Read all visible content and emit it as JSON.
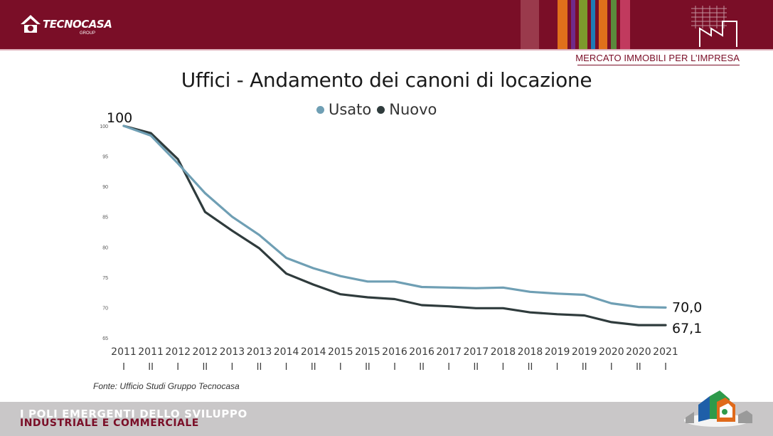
{
  "header": {
    "brand": "TECNOCASA",
    "brand_sub": "GROUP",
    "section_label": "MERCATO IMMOBILI PER L’IMPRESA",
    "stripe_colors": [
      "#9a3a4c",
      "#7a0e27",
      "#e0701b",
      "#6f2a8a",
      "#7d9a2c",
      "#1e7bb5",
      "#e0701b",
      "#5b8a3c",
      "#c13a5e"
    ]
  },
  "chart_data": {
    "type": "line",
    "title": "Uffici - Andamento dei canoni di locazione",
    "categories": [
      "2011",
      "2011",
      "2012",
      "2012",
      "2013",
      "2013",
      "2014",
      "2014",
      "2015",
      "2015",
      "2016",
      "2016",
      "2017",
      "2017",
      "2018",
      "2018",
      "2019",
      "2019",
      "2020",
      "2020",
      "2021"
    ],
    "semesters": [
      "I",
      "II",
      "I",
      "II",
      "I",
      "II",
      "I",
      "II",
      "I",
      "II",
      "I",
      "II",
      "I",
      "II",
      "I",
      "II",
      "I",
      "II",
      "I",
      "II",
      "I"
    ],
    "y_ticks": [
      65,
      70,
      75,
      80,
      85,
      90,
      95,
      100
    ],
    "ylim": [
      65,
      100
    ],
    "series": [
      {
        "name": "Usato",
        "color": "#6f9fb4",
        "values": [
          100,
          98.4,
          93.8,
          88.9,
          85.0,
          82.0,
          78.2,
          76.5,
          75.2,
          74.3,
          74.3,
          73.4,
          73.3,
          73.2,
          73.3,
          72.6,
          72.3,
          72.1,
          70.7,
          70.1,
          70.0
        ]
      },
      {
        "name": "Nuovo",
        "color": "#2f3b3c",
        "values": [
          100,
          98.8,
          94.5,
          85.8,
          82.7,
          79.8,
          75.6,
          73.8,
          72.2,
          71.7,
          71.4,
          70.4,
          70.2,
          69.9,
          69.9,
          69.2,
          68.9,
          68.7,
          67.6,
          67.1,
          67.1
        ]
      }
    ],
    "start_label": "100",
    "end_labels": [
      "70,0",
      "67,1"
    ],
    "source": "Fonte: Ufficio Studi Gruppo Tecnocasa"
  },
  "footer": {
    "line1": "I POLI EMERGENTI DELLO SVILUPPO",
    "line2": "INDUSTRIALE E COMMERCIALE"
  }
}
